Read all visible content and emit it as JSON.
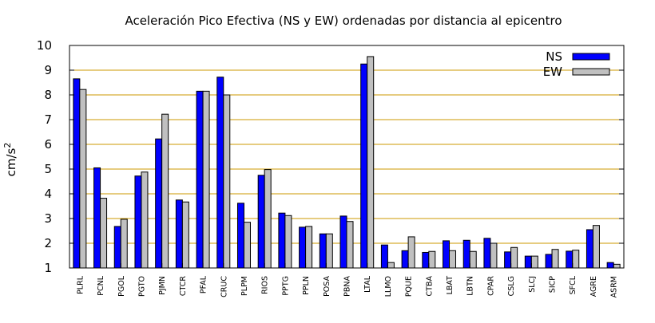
{
  "chart_data": {
    "type": "bar",
    "title": "Aceleración Pico Efectiva (NS y EW) ordenadas por distancia al epicentro",
    "ylabel": "cm/s",
    "ylabel_superscript": "2",
    "xlabel": "",
    "ylim": [
      1,
      10
    ],
    "yticks": [
      1,
      2,
      3,
      4,
      5,
      6,
      7,
      8,
      9,
      10
    ],
    "grid": "horizontal",
    "legend_position": "top-right",
    "categories": [
      "PLRL",
      "PCNL",
      "PGOL",
      "PGTO",
      "PJMN",
      "CTCR",
      "PFAL",
      "CRUC",
      "PLPM",
      "RIOS",
      "PPTG",
      "PPLN",
      "POSA",
      "PBNA",
      "LTAL",
      "LLMO",
      "PQUE",
      "CTBA",
      "LBAT",
      "LBTN",
      "CPAR",
      "CSLG",
      "SLCJ",
      "SICP",
      "SFCL",
      "AGRE",
      "ASRM"
    ],
    "series": [
      {
        "name": "NS",
        "color": "#0000ff",
        "values": [
          8.65,
          5.05,
          2.68,
          4.72,
          6.22,
          3.75,
          8.15,
          8.72,
          3.62,
          4.75,
          3.22,
          2.65,
          2.38,
          3.1,
          9.25,
          1.93,
          1.7,
          1.63,
          2.1,
          2.12,
          2.2,
          1.65,
          1.48,
          1.55,
          1.68,
          2.55,
          1.22
        ]
      },
      {
        "name": "EW",
        "color": "#c0c0c0",
        "values": [
          8.22,
          3.82,
          2.97,
          4.88,
          7.22,
          3.67,
          8.15,
          8.0,
          2.85,
          4.98,
          3.12,
          2.68,
          2.38,
          2.88,
          9.55,
          1.22,
          2.26,
          1.67,
          1.7,
          1.67,
          2.0,
          1.83,
          1.48,
          1.75,
          1.72,
          2.72,
          1.15
        ]
      }
    ]
  }
}
